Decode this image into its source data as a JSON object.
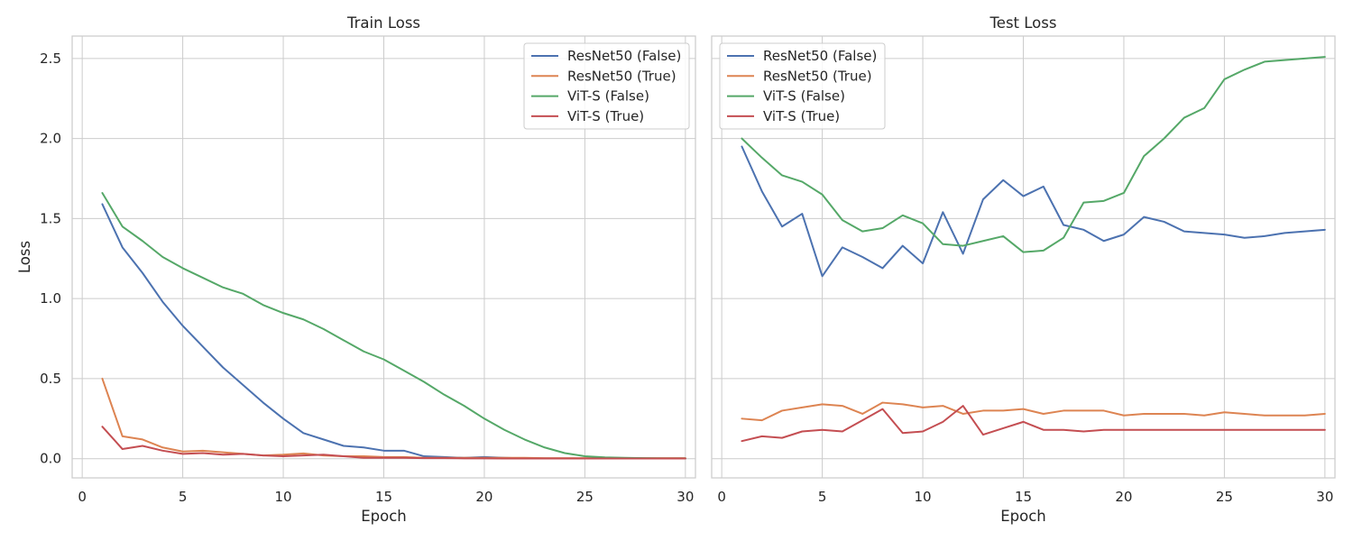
{
  "chart_data": [
    {
      "type": "line",
      "title": "Train Loss",
      "xlabel": "Epoch",
      "ylabel": "Loss",
      "xlim": [
        -0.5,
        30.5
      ],
      "ylim": [
        -0.12,
        2.64
      ],
      "xticks": [
        0,
        5,
        10,
        15,
        20,
        25,
        30
      ],
      "yticks": [
        0.0,
        0.5,
        1.0,
        1.5,
        2.0,
        2.5
      ],
      "xtick_labels": [
        "0",
        "5",
        "10",
        "15",
        "20",
        "25",
        "30"
      ],
      "ytick_labels": [
        "0.0",
        "0.5",
        "1.0",
        "1.5",
        "2.0",
        "2.5"
      ],
      "grid": true,
      "legend_position": "top-right",
      "x": [
        1,
        2,
        3,
        4,
        5,
        6,
        7,
        8,
        9,
        10,
        11,
        12,
        13,
        14,
        15,
        16,
        17,
        18,
        19,
        20,
        21,
        22,
        23,
        24,
        25,
        26,
        27,
        28,
        29,
        30
      ],
      "series": [
        {
          "name": "ResNet50 (False)",
          "color": "#4c72b0",
          "values": [
            1.59,
            1.32,
            1.16,
            0.98,
            0.83,
            0.7,
            0.57,
            0.46,
            0.35,
            0.25,
            0.16,
            0.12,
            0.08,
            0.07,
            0.05,
            0.05,
            0.015,
            0.01,
            0.005,
            0.01,
            0.005,
            0.002,
            0.002,
            0.001,
            0.001,
            0.001,
            0.001,
            0.001,
            0.001,
            0.001
          ]
        },
        {
          "name": "ResNet50 (True)",
          "color": "#dd8452",
          "values": [
            0.5,
            0.14,
            0.12,
            0.07,
            0.045,
            0.05,
            0.04,
            0.03,
            0.02,
            0.025,
            0.033,
            0.02,
            0.015,
            0.015,
            0.01,
            0.01,
            0.005,
            0.005,
            0.005,
            0.005,
            0.005,
            0.005,
            0.003,
            0.003,
            0.003,
            0.003,
            0.003,
            0.003,
            0.003,
            0.003
          ]
        },
        {
          "name": "ViT-S (False)",
          "color": "#55a868",
          "values": [
            1.66,
            1.45,
            1.36,
            1.26,
            1.19,
            1.13,
            1.07,
            1.03,
            0.96,
            0.91,
            0.87,
            0.81,
            0.74,
            0.67,
            0.62,
            0.55,
            0.48,
            0.4,
            0.33,
            0.25,
            0.18,
            0.12,
            0.07,
            0.035,
            0.015,
            0.008,
            0.005,
            0.003,
            0.002,
            0.002
          ]
        },
        {
          "name": "ViT-S (True)",
          "color": "#c44e52",
          "values": [
            0.2,
            0.06,
            0.08,
            0.05,
            0.03,
            0.035,
            0.025,
            0.03,
            0.02,
            0.015,
            0.02,
            0.025,
            0.015,
            0.005,
            0.005,
            0.005,
            0.003,
            0.003,
            0.002,
            0.002,
            0.001,
            0.001,
            0.001,
            0.001,
            0.001,
            0.001,
            0.001,
            0.001,
            0.001,
            0.001
          ]
        }
      ]
    },
    {
      "type": "line",
      "title": "Test Loss",
      "xlabel": "Epoch",
      "ylabel": "",
      "xlim": [
        -0.5,
        30.5
      ],
      "ylim": [
        -0.12,
        2.64
      ],
      "xticks": [
        0,
        5,
        10,
        15,
        20,
        25,
        30
      ],
      "yticks": [
        0.0,
        0.5,
        1.0,
        1.5,
        2.0,
        2.5
      ],
      "xtick_labels": [
        "0",
        "5",
        "10",
        "15",
        "20",
        "25",
        "30"
      ],
      "ytick_labels": [],
      "grid": true,
      "legend_position": "top-left",
      "x": [
        1,
        2,
        3,
        4,
        5,
        6,
        7,
        8,
        9,
        10,
        11,
        12,
        13,
        14,
        15,
        16,
        17,
        18,
        19,
        20,
        21,
        22,
        23,
        24,
        25,
        26,
        27,
        28,
        29,
        30
      ],
      "series": [
        {
          "name": "ResNet50 (False)",
          "color": "#4c72b0",
          "values": [
            1.95,
            1.67,
            1.45,
            1.53,
            1.14,
            1.32,
            1.26,
            1.19,
            1.33,
            1.22,
            1.54,
            1.28,
            1.62,
            1.74,
            1.64,
            1.7,
            1.46,
            1.43,
            1.36,
            1.4,
            1.51,
            1.48,
            1.42,
            1.41,
            1.4,
            1.38,
            1.39,
            1.41,
            1.42,
            1.43
          ]
        },
        {
          "name": "ResNet50 (True)",
          "color": "#dd8452",
          "values": [
            0.25,
            0.24,
            0.3,
            0.32,
            0.34,
            0.33,
            0.28,
            0.35,
            0.34,
            0.32,
            0.33,
            0.28,
            0.3,
            0.3,
            0.31,
            0.28,
            0.3,
            0.3,
            0.3,
            0.27,
            0.28,
            0.28,
            0.28,
            0.27,
            0.29,
            0.28,
            0.27,
            0.27,
            0.27,
            0.28
          ]
        },
        {
          "name": "ViT-S (False)",
          "color": "#55a868",
          "values": [
            2.0,
            1.88,
            1.77,
            1.73,
            1.65,
            1.49,
            1.42,
            1.44,
            1.52,
            1.47,
            1.34,
            1.33,
            1.36,
            1.39,
            1.29,
            1.3,
            1.38,
            1.6,
            1.61,
            1.66,
            1.89,
            2.0,
            2.13,
            2.19,
            2.37,
            2.43,
            2.48,
            2.49,
            2.5,
            2.51
          ]
        },
        {
          "name": "ViT-S (True)",
          "color": "#c44e52",
          "values": [
            0.11,
            0.14,
            0.13,
            0.17,
            0.18,
            0.17,
            0.24,
            0.31,
            0.16,
            0.17,
            0.23,
            0.33,
            0.15,
            0.19,
            0.23,
            0.18,
            0.18,
            0.17,
            0.18,
            0.18,
            0.18,
            0.18,
            0.18,
            0.18,
            0.18,
            0.18,
            0.18,
            0.18,
            0.18,
            0.18
          ]
        }
      ]
    }
  ]
}
